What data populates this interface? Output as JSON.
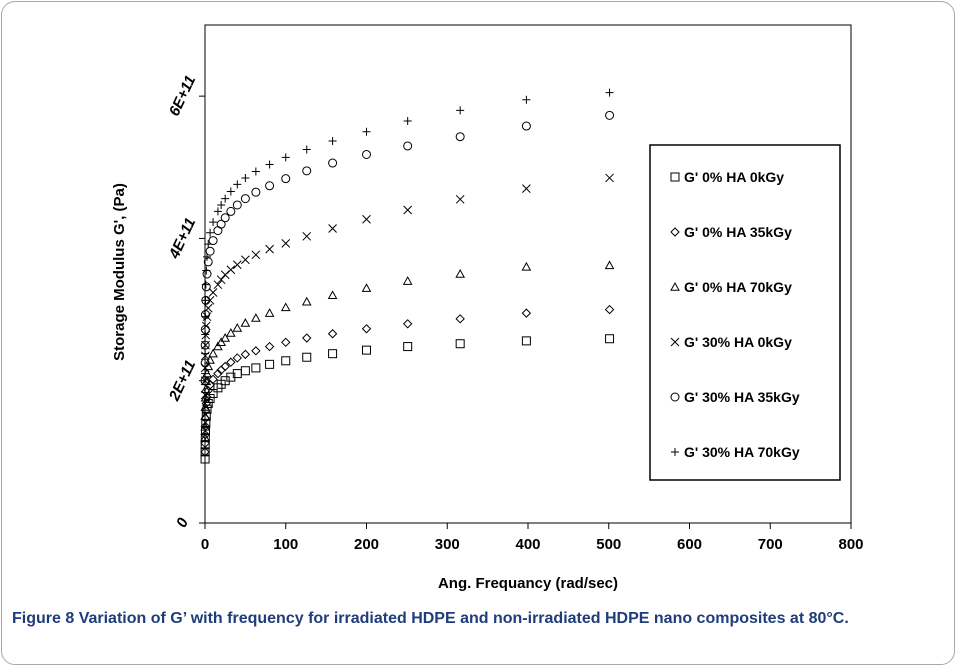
{
  "caption": {
    "label": "Figure 8",
    "text": "Variation of G’ with frequency for irradiated HDPE and non-irradiated HDPE nano composites at 80°C."
  },
  "chart_data": {
    "type": "scatter",
    "xlabel": "Ang. Frequancy (rad/sec)",
    "ylabel": "Storage Modulus G',  (Pa)",
    "xlim": [
      0,
      800
    ],
    "ylim": [
      0,
      700000000000
    ],
    "xticks": [
      0,
      100,
      200,
      300,
      400,
      500,
      600,
      700,
      800
    ],
    "xtick_labels": [
      "0",
      "100",
      "200",
      "300",
      "400",
      "500",
      "600",
      "700",
      "800"
    ],
    "yticks": [
      0,
      200000000000,
      400000000000,
      600000000000
    ],
    "ytick_labels": [
      "0",
      "2E+11",
      "4E+11",
      "6E+11"
    ],
    "grid": false,
    "legend_position": "right",
    "x": [
      0.1,
      0.16,
      0.25,
      0.4,
      0.63,
      1,
      1.6,
      2.5,
      4,
      6.3,
      10,
      16,
      20,
      25,
      32,
      40,
      50,
      63,
      80,
      100,
      126,
      158,
      200,
      251,
      316,
      398,
      501
    ],
    "series": [
      {
        "name": "G' 0% HA 0kGy",
        "marker": "square",
        "values": [
          90000000000,
          100000000000,
          110000000000,
          120000000000,
          130000000000,
          140000000000,
          150000000000,
          160000000000,
          168000000000,
          175000000000,
          182000000000,
          190000000000,
          195000000000,
          200000000000,
          205000000000,
          210000000000,
          214000000000,
          218000000000,
          223000000000,
          228000000000,
          233000000000,
          238000000000,
          243000000000,
          248000000000,
          252000000000,
          256000000000,
          259000000000
        ]
      },
      {
        "name": "G' 0% HA  35kGy",
        "marker": "diamond",
        "values": [
          100000000000,
          112000000000,
          124000000000,
          136000000000,
          147000000000,
          158000000000,
          168000000000,
          177000000000,
          186000000000,
          194000000000,
          202000000000,
          210000000000,
          215000000000,
          220000000000,
          226000000000,
          232000000000,
          237000000000,
          242000000000,
          248000000000,
          254000000000,
          260000000000,
          266000000000,
          273000000000,
          280000000000,
          287000000000,
          295000000000,
          300000000000
        ]
      },
      {
        "name": "G' 0% HA 70kGy",
        "marker": "triangle",
        "values": [
          120000000000,
          135000000000,
          150000000000,
          163000000000,
          176000000000,
          188000000000,
          199000000000,
          210000000000,
          220000000000,
          229000000000,
          238000000000,
          248000000000,
          254000000000,
          260000000000,
          267000000000,
          274000000000,
          281000000000,
          288000000000,
          295000000000,
          303000000000,
          311000000000,
          320000000000,
          330000000000,
          340000000000,
          350000000000,
          360000000000,
          362000000000
        ]
      },
      {
        "name": "G' 30% HA 0kGy",
        "marker": "x",
        "values": [
          180000000000,
          200000000000,
          218000000000,
          235000000000,
          250000000000,
          264000000000,
          277000000000,
          290000000000,
          302000000000,
          313000000000,
          324000000000,
          335000000000,
          342000000000,
          349000000000,
          356000000000,
          363000000000,
          370000000000,
          377000000000,
          385000000000,
          393000000000,
          403000000000,
          414000000000,
          427000000000,
          440000000000,
          455000000000,
          470000000000,
          485000000000
        ]
      },
      {
        "name": "G' 30% HA 35kGy",
        "marker": "circle",
        "values": [
          200000000000,
          225000000000,
          250000000000,
          272000000000,
          293000000000,
          313000000000,
          332000000000,
          350000000000,
          367000000000,
          382000000000,
          397000000000,
          411000000000,
          420000000000,
          429000000000,
          438000000000,
          447000000000,
          456000000000,
          465000000000,
          474000000000,
          484000000000,
          495000000000,
          506000000000,
          518000000000,
          530000000000,
          543000000000,
          558000000000,
          573000000000
        ]
      },
      {
        "name": "G' 30% HA 70kGy",
        "marker": "plus",
        "values": [
          210000000000,
          238000000000,
          265000000000,
          290000000000,
          313000000000,
          335000000000,
          355000000000,
          374000000000,
          392000000000,
          408000000000,
          423000000000,
          438000000000,
          447000000000,
          456000000000,
          466000000000,
          476000000000,
          485000000000,
          494000000000,
          504000000000,
          514000000000,
          525000000000,
          537000000000,
          550000000000,
          565000000000,
          580000000000,
          595000000000,
          605000000000
        ]
      }
    ]
  }
}
